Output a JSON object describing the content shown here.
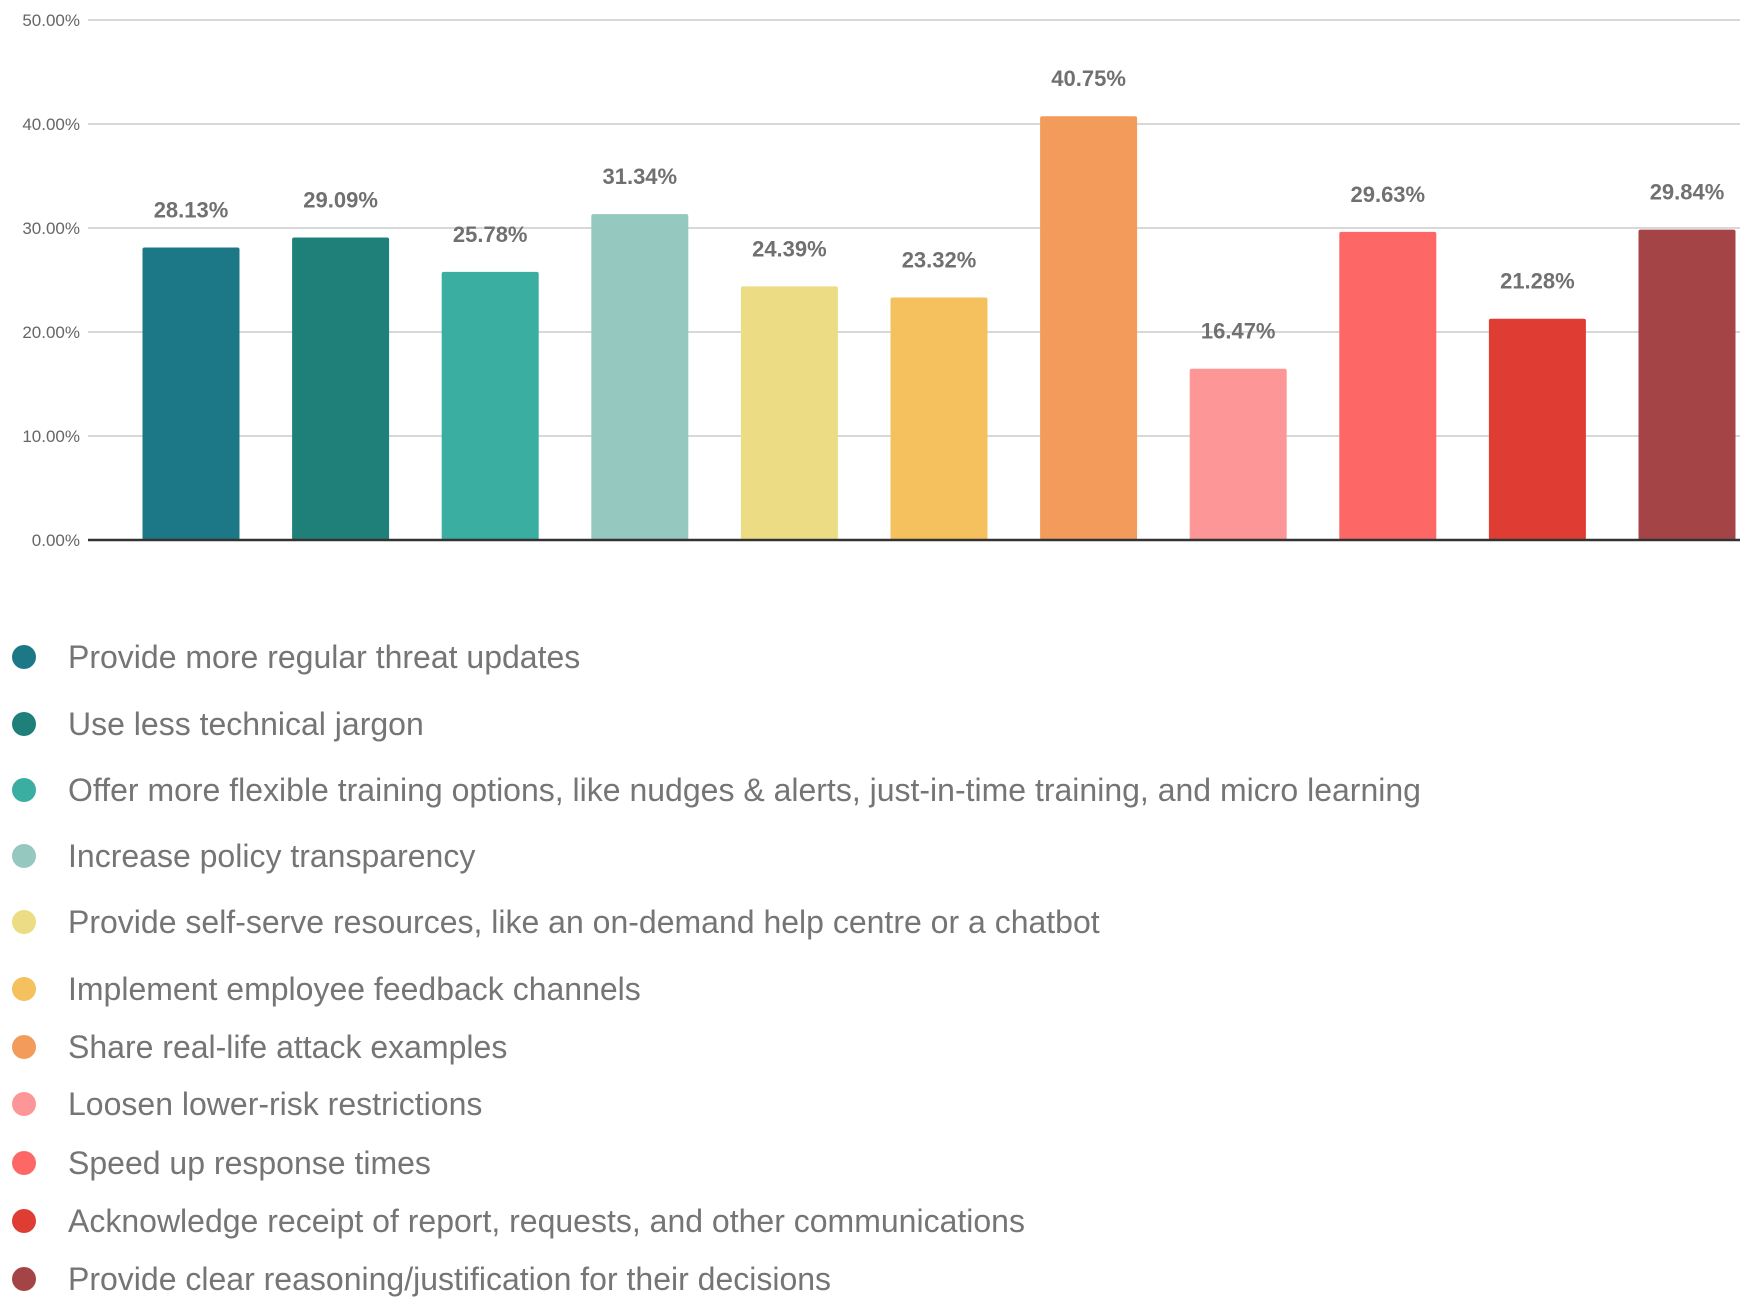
{
  "chart_data": {
    "type": "bar",
    "categories": [
      "Provide more regular threat updates",
      "Use less technical jargon",
      "Offer more flexible training options, like nudges & alerts, just-in-time training, and micro learning",
      "Increase policy transparency",
      "Provide self-serve resources, like an on-demand help centre or a chatbot",
      "Implement employee feedback channels",
      "Share real-life attack examples",
      "Loosen lower-risk restrictions",
      "Speed up response times",
      "Acknowledge receipt of report, requests, and other communications",
      "Provide clear reasoning/justification for their decisions"
    ],
    "values": [
      28.13,
      29.09,
      25.78,
      31.34,
      24.39,
      23.32,
      40.75,
      16.47,
      29.63,
      21.28,
      29.84
    ],
    "value_labels": [
      "28.13%",
      "29.09%",
      "25.78%",
      "31.34%",
      "24.39%",
      "23.32%",
      "40.75%",
      "16.47%",
      "29.63%",
      "21.28%",
      "29.84%"
    ],
    "colors": [
      "#1c7886",
      "#1f8079",
      "#3aaea0",
      "#95c8be",
      "#ecdc83",
      "#f4c15e",
      "#f39b5a",
      "#fd9696",
      "#fd6766",
      "#df3d33",
      "#a54447"
    ],
    "ylim": [
      0,
      50
    ],
    "y_ticks": [
      0,
      10,
      20,
      30,
      40,
      50
    ],
    "y_tick_labels": [
      "0.00%",
      "10.00%",
      "20.00%",
      "30.00%",
      "40.00%",
      "50.00%"
    ],
    "grid": true,
    "legend_position": "bottom",
    "title": "",
    "xlabel": "",
    "ylabel": ""
  }
}
